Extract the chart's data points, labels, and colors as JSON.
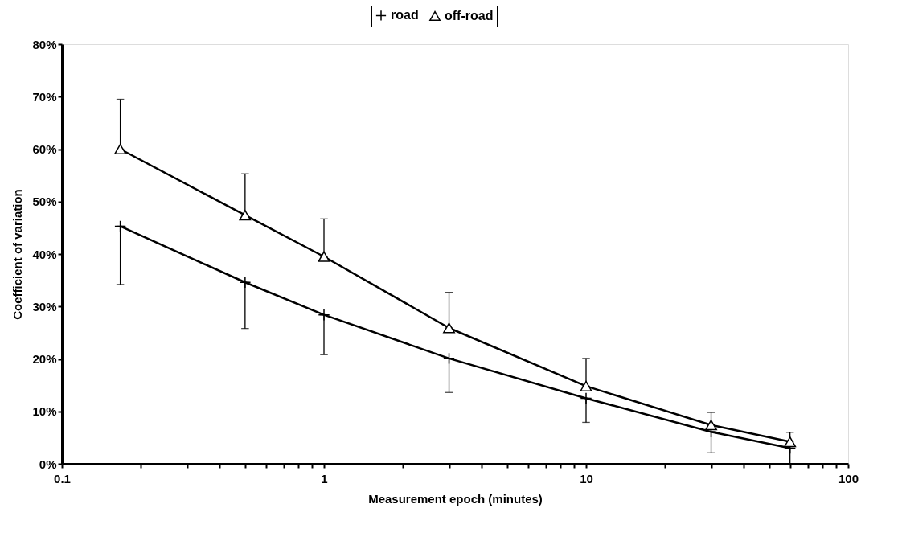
{
  "chart_data": {
    "type": "line",
    "xlabel": "Measurement epoch (minutes)",
    "ylabel": "Coefficient of variation",
    "x": [
      0.167,
      0.5,
      1,
      3,
      10,
      30,
      60
    ],
    "series": [
      {
        "name": "road",
        "color": "#000000",
        "marker": "cross",
        "values": [
          45.3,
          34.6,
          28.4,
          20.1,
          12.5,
          6.1,
          3.0
        ],
        "errors": [
          [
            34.2,
            45.3
          ],
          [
            25.8,
            34.6
          ],
          [
            20.8,
            28.4
          ],
          [
            13.6,
            20.1
          ],
          [
            7.9,
            12.5
          ],
          [
            2.1,
            6.1
          ],
          [
            0,
            3.0
          ]
        ]
      },
      {
        "name": "off-road",
        "color": "#000000",
        "marker": "triangle",
        "values": [
          60.0,
          47.4,
          39.5,
          25.9,
          14.8,
          7.4,
          4.2
        ],
        "errors": [
          [
            60.0,
            69.5
          ],
          [
            47.4,
            55.3
          ],
          [
            39.5,
            46.7
          ],
          [
            25.9,
            32.7
          ],
          [
            14.8,
            20.1
          ],
          [
            7.4,
            9.8
          ],
          [
            4.2,
            6.0
          ]
        ]
      }
    ],
    "log": "x",
    "xlim": [
      0.1,
      100
    ],
    "xticks": [
      0.1,
      {
        "value": 0.2,
        "label": null
      },
      {
        "value": 0.3,
        "label": null
      },
      {
        "value": 0.4,
        "label": null
      },
      {
        "value": 0.5,
        "label": null
      },
      {
        "value": 0.6,
        "label": null
      },
      {
        "value": 0.7,
        "label": null
      },
      {
        "value": 0.8,
        "label": null
      },
      {
        "value": 0.9,
        "label": null
      },
      1,
      {
        "value": 2,
        "label": null
      },
      {
        "value": 3,
        "label": null
      },
      {
        "value": 4,
        "label": null
      },
      {
        "value": 5,
        "label": null
      },
      {
        "value": 6,
        "label": null
      },
      {
        "value": 7,
        "label": null
      },
      {
        "value": 8,
        "label": null
      },
      {
        "value": 9,
        "label": null
      },
      10,
      {
        "value": 20,
        "label": null
      },
      {
        "value": 30,
        "label": null
      },
      {
        "value": 40,
        "label": null
      },
      {
        "value": 50,
        "label": null
      },
      {
        "value": 60,
        "label": null
      },
      {
        "value": 70,
        "label": null
      },
      {
        "value": 80,
        "label": null
      },
      {
        "value": 90,
        "label": null
      },
      100
    ],
    "ylim": [
      0,
      80
    ],
    "yticks": [
      {
        "value": 0,
        "label": "0%"
      },
      {
        "value": 10,
        "label": "10%"
      },
      {
        "value": 20,
        "label": "20%"
      },
      {
        "value": 30,
        "label": "30%"
      },
      {
        "value": 40,
        "label": "40%"
      },
      {
        "value": 50,
        "label": "50%"
      },
      {
        "value": 60,
        "label": "60%"
      },
      {
        "value": 70,
        "label": "70%"
      },
      {
        "value": 80,
        "label": "80%"
      }
    ],
    "grid": false,
    "legend": "top",
    "line_style": "solid"
  }
}
